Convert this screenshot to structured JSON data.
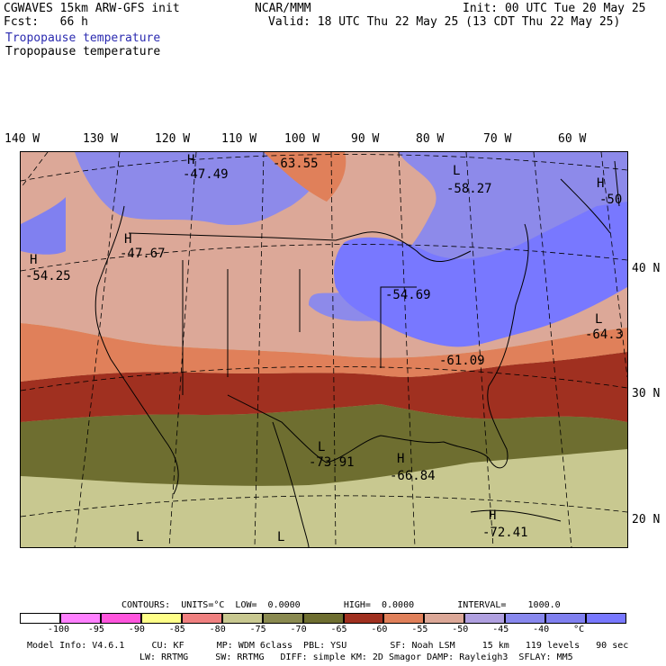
{
  "header": {
    "model": "CGWAVES 15km ARW-GFS init",
    "fcst": "Fcst:   66 h",
    "source": "NCAR/MMM",
    "init": "Init: 00 UTC Tue 20 May 25",
    "valid": "Valid: 18 UTC Thu 22 May 25 (13 CDT Thu 22 May 25)",
    "field1": "Tropopause temperature",
    "field2": "Tropopause temperature"
  },
  "map": {
    "lon_labels": [
      "140 W",
      "130 W",
      "120 W",
      "110 W",
      "100 W",
      "90 W",
      "80 W",
      "70 W",
      "60 W"
    ],
    "lat_labels": [
      "40 N",
      "30 N",
      "20 N"
    ],
    "extrema": [
      {
        "type": "H",
        "value": "-47.49"
      },
      {
        "type": "",
        "value": "-63.55"
      },
      {
        "type": "L",
        "value": "-58.27"
      },
      {
        "type": "H",
        "value": "-50"
      },
      {
        "type": "H",
        "value": "-47.67"
      },
      {
        "type": "H",
        "value": "-54.25"
      },
      {
        "type": "",
        "value": "-54.69"
      },
      {
        "type": "L",
        "value": "-64.3"
      },
      {
        "type": "",
        "value": "-61.09"
      },
      {
        "type": "L",
        "value": "-73.91"
      },
      {
        "type": "H",
        "value": "-66.84"
      },
      {
        "type": "H",
        "value": "-72.41"
      },
      {
        "type": "L",
        "value": ""
      },
      {
        "type": "L",
        "value": ""
      }
    ]
  },
  "legend": {
    "contours": "CONTOURS:  UNITS=°C  LOW=  0.0000        HIGH=  0.0000        INTERVAL=    1000.0",
    "colors": [
      "#ffffff",
      "#ff80ff",
      "#ff55dd",
      "#ffff88",
      "#f08080",
      "#c8c890",
      "#8a8a50",
      "#6e6e30",
      "#a03020",
      "#e0805a",
      "#dca898",
      "#b0a0e0",
      "#8888ee",
      "#8080f0",
      "#7878ff"
    ],
    "ticks": [
      "-100",
      "-95",
      "-90",
      "-85",
      "-80",
      "-75",
      "-70",
      "-65",
      "-60",
      "-55",
      "-50",
      "-45",
      "-40",
      "°C"
    ]
  },
  "footer": {
    "line1": "Model Info: V4.6.1     CU: KF      MP: WDM 6class  PBL: YSU        SF: Noah LSM     15 km   119 levels   90 sec",
    "line2": "LW: RRTMG     SW: RRTMG   DIFF: simple KM: 2D Smagor DAMP: Rayleigh3  SFLAY: MM5"
  }
}
